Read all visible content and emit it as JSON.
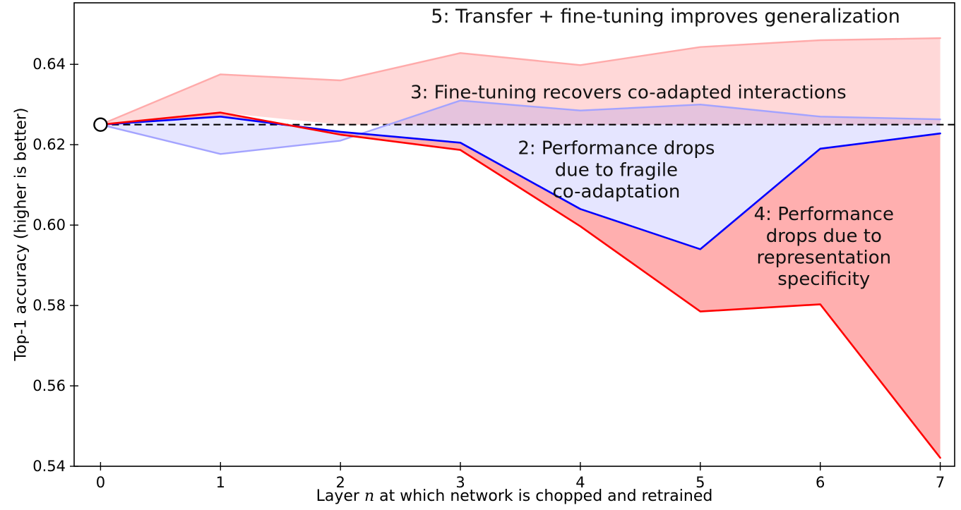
{
  "chart_data": {
    "type": "line",
    "xlabel_parts": {
      "pre": "Layer ",
      "var": "n",
      "post": " at which network is chopped and retrained"
    },
    "ylabel": "Top-1 accuracy (higher is better)",
    "x": [
      0,
      1,
      2,
      3,
      4,
      5,
      6,
      7
    ],
    "xlim": [
      -0.22,
      7.12
    ],
    "ylim": [
      0.54,
      0.6553
    ],
    "xticks": [
      0,
      1,
      2,
      3,
      4,
      5,
      6,
      7
    ],
    "xtick_labels": [
      "0",
      "1",
      "2",
      "3",
      "4",
      "5",
      "6",
      "7"
    ],
    "yticks": [
      0.54,
      0.56,
      0.58,
      0.6,
      0.62,
      0.64
    ],
    "ytick_labels": [
      "0.54",
      "0.56",
      "0.58",
      "0.60",
      "0.62",
      "0.64"
    ],
    "baseline": 0.625,
    "marker": {
      "x": 0,
      "y": 0.625
    },
    "grid": false,
    "legend": "none",
    "series": [
      {
        "id": "5-transfer-finetuning",
        "color": "#ffaaaa",
        "width": 2.4,
        "values": [
          0.625,
          0.6375,
          0.636,
          0.6428,
          0.6398,
          0.6443,
          0.646,
          0.6465
        ]
      },
      {
        "id": "3-finetuning-recovery",
        "color": "#a3a3ff",
        "width": 2.4,
        "values": [
          0.625,
          0.6177,
          0.621,
          0.631,
          0.6285,
          0.63,
          0.627,
          0.6263
        ]
      },
      {
        "id": "2-fragile-coadaptation",
        "color": "#0000ff",
        "width": 2.6,
        "values": [
          0.625,
          0.627,
          0.6232,
          0.6205,
          0.604,
          0.594,
          0.619,
          0.6228
        ]
      },
      {
        "id": "4-representation-specificity",
        "color": "#ff0000",
        "width": 2.6,
        "values": [
          0.625,
          0.628,
          0.6225,
          0.6187,
          0.5997,
          0.5785,
          0.5803,
          0.5421
        ]
      }
    ],
    "fills": [
      {
        "name": "region-transfer-finetune-fill",
        "upper": 0,
        "lower_values": [
          0.625,
          0.628,
          0.625,
          0.625,
          0.625,
          0.625,
          0.625,
          0.625
        ],
        "color": "rgba(255,110,110,0.27)"
      },
      {
        "name": "region-fragile-coadaptation-fill",
        "upper": 1,
        "lower": 2,
        "color": "rgba(70,70,255,0.14)"
      },
      {
        "name": "region-representation-specificity-fill",
        "upper": 2,
        "lower": 3,
        "color": "rgba(255,45,45,0.38)"
      }
    ],
    "annotations": [
      {
        "id": "transfer-finetune-note",
        "x": 4.71,
        "y": 0.6521,
        "font": 27,
        "lines": [
          "5: Transfer + fine-tuning improves generalization"
        ]
      },
      {
        "id": "finetune-recovers-note",
        "x": 4.4,
        "y": 0.6332,
        "font": 26,
        "lines": [
          "3: Fine-tuning recovers co-adapted interactions"
        ]
      },
      {
        "id": "fragile-coadaptation-note",
        "x": 4.3,
        "y": 0.6139,
        "font": 26,
        "lines": [
          "2: Performance drops",
          "due to fragile",
          "co-adaptation"
        ]
      },
      {
        "id": "representation-specificity-note",
        "x": 6.03,
        "y": 0.5948,
        "font": 26,
        "lines": [
          "4: Performance",
          "drops due to",
          "representation",
          "specificity"
        ]
      }
    ]
  }
}
